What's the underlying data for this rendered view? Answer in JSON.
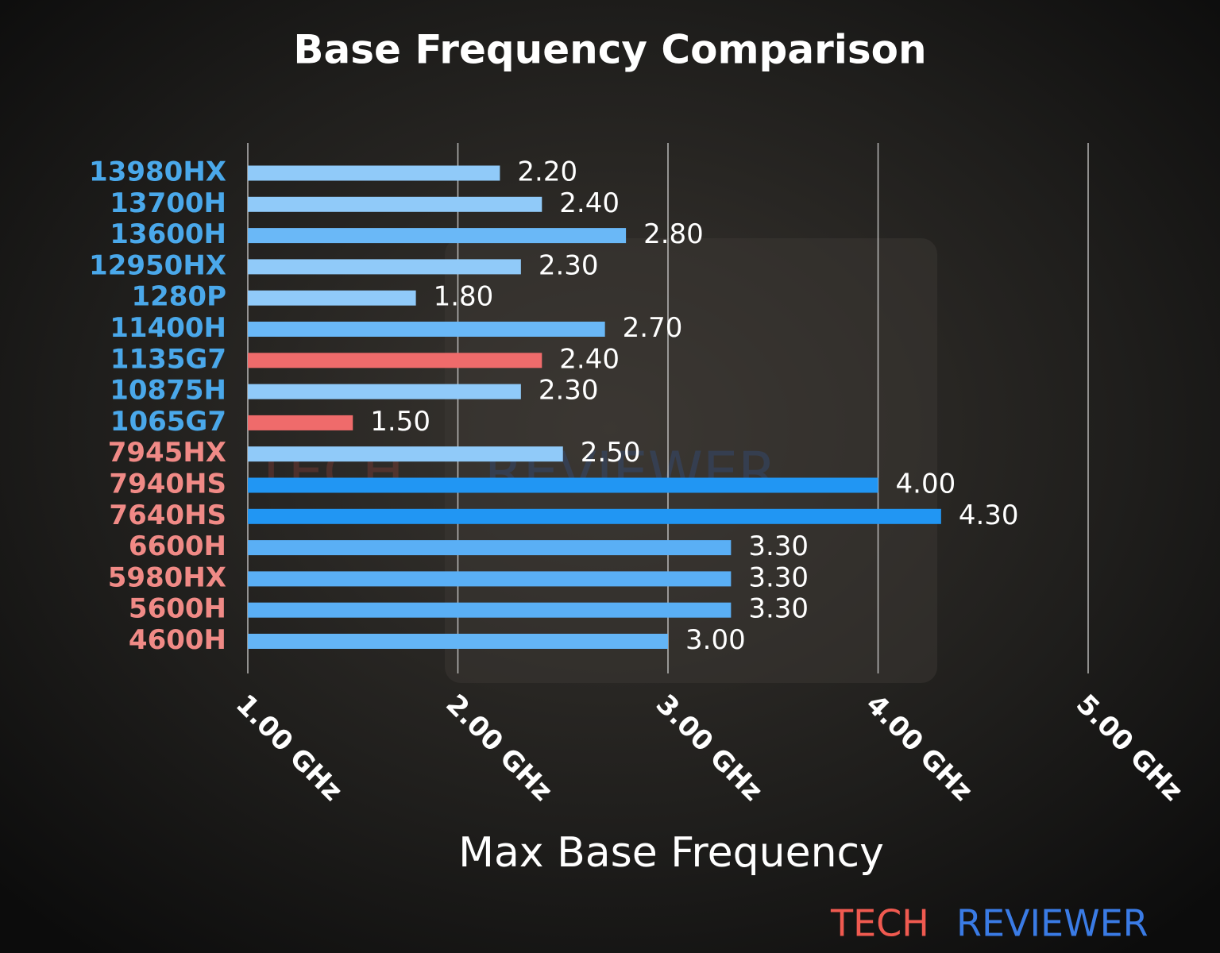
{
  "chart_data": {
    "type": "barh",
    "title": "Base Frequency Comparison",
    "x_label": "Max Base Frequency",
    "categories": [
      "13980HX",
      "13700H",
      "13600H",
      "12950HX",
      "1280P",
      "11400H",
      "1135G7",
      "10875H",
      "1065G7",
      "7945HX",
      "7940HS",
      "7640HS",
      "6600H",
      "5980HX",
      "5600H",
      "4600H"
    ],
    "category_colors": [
      "#4aa8ea",
      "#4aa8ea",
      "#4aa8ea",
      "#4aa8ea",
      "#4aa8ea",
      "#4aa8ea",
      "#4aa8ea",
      "#4aa8ea",
      "#4aa8ea",
      "#f08a86",
      "#f08a86",
      "#f08a86",
      "#f08a86",
      "#f08a86",
      "#f08a86",
      "#f08a86"
    ],
    "values": [
      2.2,
      2.4,
      2.8,
      2.3,
      1.8,
      2.7,
      2.4,
      2.3,
      1.5,
      2.5,
      4.0,
      4.3,
      3.3,
      3.3,
      3.3,
      3.0
    ],
    "value_labels": [
      "2.20",
      "2.40",
      "2.80",
      "2.30",
      "1.80",
      "2.70",
      "2.40",
      "2.30",
      "1.50",
      "2.50",
      "4.00",
      "4.30",
      "3.30",
      "3.30",
      "3.30",
      "3.00"
    ],
    "colors": [
      "#90caf9",
      "#90caf9",
      "#6ab8f7",
      "#90caf9",
      "#90caf9",
      "#6ab8f7",
      "#ef6b6b",
      "#90caf9",
      "#ef6b6b",
      "#90caf9",
      "#2196f3",
      "#2196f3",
      "#5aaff5",
      "#5aaff5",
      "#5aaff5",
      "#64b5f6"
    ],
    "xlim": [
      1,
      5
    ],
    "xticks": [
      {
        "value": 1,
        "label": "1.00 GHz"
      },
      {
        "value": 2,
        "label": "2.00 GHz"
      },
      {
        "value": 3,
        "label": "3.00 GHz"
      },
      {
        "value": 4,
        "label": "4.00 GHz"
      },
      {
        "value": 5,
        "label": "5.00 GHz"
      }
    ],
    "grid": true,
    "watermark": [
      "TECH",
      "REVIEWER"
    ]
  }
}
